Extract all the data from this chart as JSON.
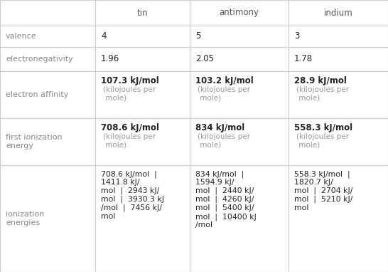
{
  "col_headers": [
    "",
    "tin",
    "antimony",
    "indium"
  ],
  "rows": [
    {
      "label": "valence",
      "values": [
        "4",
        "5",
        "3"
      ],
      "has_sub": [
        false,
        false,
        false
      ]
    },
    {
      "label": "electronegativity",
      "values": [
        "1.96",
        "2.05",
        "1.78"
      ],
      "has_sub": [
        false,
        false,
        false
      ]
    },
    {
      "label": "electron affinity",
      "values": [
        "107.3 kJ/mol",
        "103.2 kJ/mol",
        "28.9 kJ/mol"
      ],
      "subs": [
        "(kilojoules per\n mole)",
        "(kilojoules per\n mole)",
        "(kilojoules per\n mole)"
      ],
      "has_sub": [
        true,
        true,
        true
      ]
    },
    {
      "label": "first ionization\nenergy",
      "values": [
        "708.6 kJ/mol",
        "834 kJ/mol",
        "558.3 kJ/mol"
      ],
      "subs": [
        "(kilojoules per\n mole)",
        "(kilojoules per\n mole)",
        "(kilojoules per\n mole)"
      ],
      "has_sub": [
        true,
        true,
        true
      ]
    },
    {
      "label": "ionization\nenergies",
      "values": [
        "708.6 kJ/mol  |\n1411.8 kJ/\nmol  |  2943 kJ/\nmol  |  3930.3 kJ\n/mol  |  7456 kJ/\nmol",
        "834 kJ/mol  |\n1594.9 kJ/\nmol  |  2440 kJ/\nmol  |  4260 kJ/\nmol  |  5400 kJ/\nmol  |  10400 kJ\n/mol",
        "558.3 kJ/mol  |\n1820.7 kJ/\nmol  |  2704 kJ/\nmol  |  5210 kJ/\nmol"
      ],
      "has_sub": [
        false,
        false,
        false
      ]
    }
  ],
  "label_color": "#888888",
  "header_color": "#555555",
  "bold_color": "#222222",
  "sub_color": "#999999",
  "border_color": "#cccccc",
  "header_bg": "#ffffff",
  "cell_bg": "#ffffff",
  "header_fontsize": 8.5,
  "label_fontsize": 8.0,
  "bold_fontsize": 8.5,
  "sub_fontsize": 7.5,
  "ionization_fontsize": 7.8
}
